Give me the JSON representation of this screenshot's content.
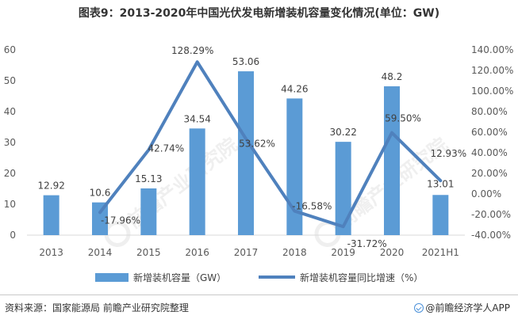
{
  "title": "图表9：2013-2020年中国光伏发电新增装机容量变化情况(单位：GW)",
  "source": "资料来源：国家能源局 前瞻产业研究院整理",
  "brand": "@前瞻经济学人APP",
  "watermark": "前瞻产业研究院",
  "colors": {
    "bar": "#5b9bd5",
    "line": "#4f81bd",
    "axis": "#d9d9d9"
  },
  "chart_data": {
    "type": "bar+line",
    "categories": [
      "2013",
      "2014",
      "2015",
      "2016",
      "2017",
      "2018",
      "2019",
      "2020",
      "2021H1"
    ],
    "series": [
      {
        "name": "新增装机容量（GW）",
        "type": "bar",
        "axis": "left",
        "values": [
          12.92,
          10.6,
          15.13,
          34.54,
          53.06,
          44.26,
          30.22,
          48.2,
          13.01
        ],
        "labels": [
          "12.92",
          "10.6",
          "15.13",
          "34.54",
          "53.06",
          "44.26",
          "30.22",
          "48.2",
          "13.01"
        ]
      },
      {
        "name": "新增装机容量同比增速（%）",
        "type": "line",
        "axis": "right",
        "values": [
          null,
          -17.96,
          42.74,
          128.29,
          53.62,
          -16.58,
          -31.72,
          59.5,
          12.93
        ],
        "labels": [
          "",
          "-17.96%",
          "42.74%",
          "128.29%",
          "53.62%",
          "-16.58%",
          "-31.72%",
          "59.50%",
          "12.93%"
        ]
      }
    ],
    "y_left": {
      "min": 0,
      "max": 60,
      "ticks": [
        "0",
        "10",
        "20",
        "30",
        "40",
        "50",
        "60"
      ]
    },
    "y_right": {
      "min": -40,
      "max": 140,
      "ticks": [
        "-40.00%",
        "-20.00%",
        "0.00%",
        "20.00%",
        "40.00%",
        "60.00%",
        "80.00%",
        "100.00%",
        "120.00%",
        "140.00%"
      ]
    },
    "grid": false,
    "legend_position": "bottom"
  }
}
